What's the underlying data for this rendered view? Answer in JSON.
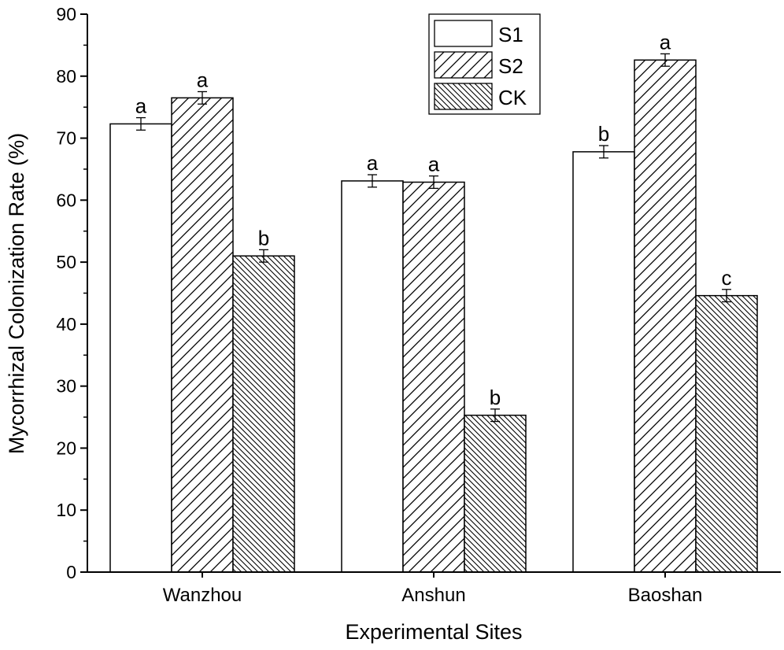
{
  "chart_data": {
    "type": "bar",
    "title": "",
    "xlabel": "Experimental Sites",
    "ylabel": "Mycorrhizal Colonization Rate (%)",
    "ylim": [
      0,
      90
    ],
    "yticks": [
      0,
      10,
      20,
      30,
      40,
      50,
      60,
      70,
      80,
      90
    ],
    "categories": [
      "Wanzhou",
      "Anshun",
      "Baoshan"
    ],
    "series": [
      {
        "name": "S1",
        "pattern": "none",
        "values": [
          72.3,
          63.1,
          67.8
        ],
        "errors": [
          1.0,
          1.0,
          1.0
        ],
        "letters": [
          "a",
          "a",
          "b"
        ]
      },
      {
        "name": "S2",
        "pattern": "forward-diagonal",
        "values": [
          76.5,
          62.9,
          82.6
        ],
        "errors": [
          1.0,
          1.0,
          1.0
        ],
        "letters": [
          "a",
          "a",
          "a"
        ]
      },
      {
        "name": "CK",
        "pattern": "backward-diagonal",
        "values": [
          51.0,
          25.3,
          44.6
        ],
        "errors": [
          1.0,
          1.0,
          1.0
        ],
        "letters": [
          "b",
          "b",
          "c"
        ]
      }
    ],
    "legend_position": "top-right",
    "grid": false
  }
}
